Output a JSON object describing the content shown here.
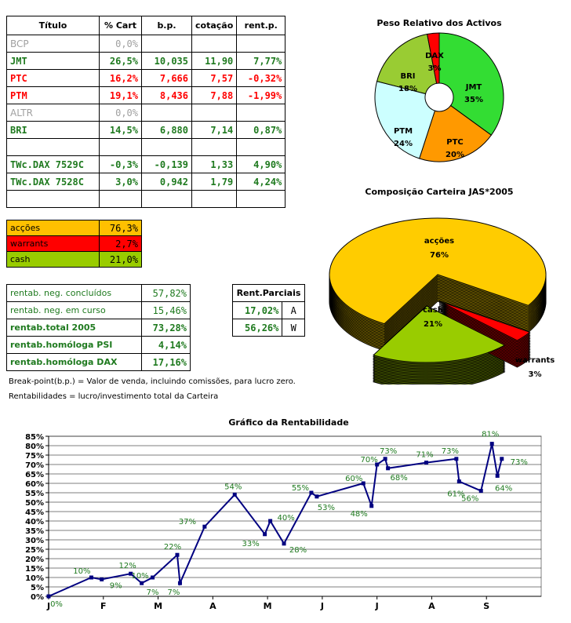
{
  "holdings_table": {
    "headers": [
      "Título",
      "% Cart",
      "b.p.",
      "cotação",
      "rent.p."
    ],
    "rows": [
      {
        "name": "BCP",
        "pct": "0,0%",
        "bp": "",
        "quote": "",
        "rent": "",
        "style": "gray"
      },
      {
        "name": "JMT",
        "pct": "26,5%",
        "bp": "10,035",
        "quote": "11,90",
        "rent": "7,77%",
        "style": "green"
      },
      {
        "name": "PTC",
        "pct": "16,2%",
        "bp": "7,666",
        "quote": "7,57",
        "rent": "-0,32%",
        "style": "red"
      },
      {
        "name": "PTM",
        "pct": "19,1%",
        "bp": "8,436",
        "quote": "7,88",
        "rent": "-1,99%",
        "style": "red"
      },
      {
        "name": "ALTR",
        "pct": "0,0%",
        "bp": "",
        "quote": "",
        "rent": "",
        "style": "gray"
      },
      {
        "name": "BRI",
        "pct": "14,5%",
        "bp": "6,880",
        "quote": "7,14",
        "rent": "0,87%",
        "style": "green"
      },
      {
        "name": "",
        "pct": "",
        "bp": "",
        "quote": "",
        "rent": "",
        "style": "blank"
      },
      {
        "name": "TWc.DAX 7529C",
        "pct": "-0,3%",
        "bp": "-0,139",
        "quote": "1,33",
        "rent": "4,90%",
        "style": "green"
      },
      {
        "name": "TWc.DAX 7528C",
        "pct": "3,0%",
        "bp": "0,942",
        "quote": "1,79",
        "rent": "4,24%",
        "style": "green"
      },
      {
        "name": "",
        "pct": "",
        "bp": "",
        "quote": "",
        "rent": "",
        "style": "blank"
      }
    ]
  },
  "allocation_table": [
    {
      "label": "acções",
      "value": "76,3%",
      "color": "#ffc000"
    },
    {
      "label": "warrants",
      "value": "2,7%",
      "color": "#ff0000"
    },
    {
      "label": "cash",
      "value": "21,0%",
      "color": "#99cc00"
    }
  ],
  "returns_table": [
    {
      "label": "rentab. neg. concluídos",
      "value": "57,82%",
      "bold": false
    },
    {
      "label": "rentab. neg. em curso",
      "value": "15,46%",
      "bold": false
    },
    {
      "label": "rentab.total 2005",
      "value": "73,28%",
      "bold": true
    },
    {
      "label": "rentab.homóloga PSI",
      "value": "4,14%",
      "bold": true
    },
    {
      "label": "rentab.homóloga DAX",
      "value": "17,16%",
      "bold": true
    }
  ],
  "partial_returns": {
    "title": "Rent.Parciais",
    "rows": [
      {
        "value": "17,02%",
        "tag": "A"
      },
      {
        "value": "56,26%",
        "tag": "W"
      }
    ]
  },
  "notes": [
    "Break-point(b.p.) = Valor de venda, incluindo comissões, para lucro zero.",
    "Rentabilidades = lucro/investimento total da Carteira"
  ],
  "chart_data": [
    {
      "type": "pie",
      "title": "Peso Relativo dos Activos",
      "labels": [
        "JMT",
        "PTC",
        "PTM",
        "BRI",
        "DAX"
      ],
      "values": [
        35,
        20,
        24,
        18,
        3
      ],
      "colors": [
        "#33dd33",
        "#ff9900",
        "#ccffff",
        "#99cc33",
        "#ff0000"
      ],
      "style": "doughnut"
    },
    {
      "type": "pie",
      "title": "Composição Carteira JAS*2005",
      "labels": [
        "acções",
        "cash",
        "warrants"
      ],
      "values": [
        76,
        21,
        3
      ],
      "colors": [
        "#ffcc00",
        "#99cc00",
        "#ff0000"
      ],
      "style": "3d-exploded"
    },
    {
      "type": "line",
      "title": "Gráfico da Rentabilidade",
      "x_labels": [
        "J",
        "F",
        "M",
        "A",
        "M",
        "J",
        "J",
        "A",
        "S"
      ],
      "x_range": [
        0,
        9
      ],
      "ylim": [
        0,
        85
      ],
      "y_ticks": [
        "0%",
        "5%",
        "10%",
        "15%",
        "20%",
        "25%",
        "30%",
        "35%",
        "40%",
        "45%",
        "50%",
        "55%",
        "60%",
        "65%",
        "70%",
        "75%",
        "80%",
        "85%"
      ],
      "grid": true,
      "line_color": "#000080",
      "label_color": "#1f7a1f",
      "points": [
        {
          "x": 0.0,
          "y": 0,
          "label": "0%"
        },
        {
          "x": 0.78,
          "y": 10,
          "label": "10%"
        },
        {
          "x": 0.97,
          "y": 9,
          "label": "9%"
        },
        {
          "x": 1.5,
          "y": 12,
          "label": "12%"
        },
        {
          "x": 1.7,
          "y": 7,
          "label": "7%"
        },
        {
          "x": 1.9,
          "y": 10,
          "label": "10%"
        },
        {
          "x": 2.35,
          "y": 22,
          "label": "22%"
        },
        {
          "x": 2.4,
          "y": 7,
          "label": "7%"
        },
        {
          "x": 2.85,
          "y": 37,
          "label": "37%"
        },
        {
          "x": 3.4,
          "y": 54,
          "label": "54%"
        },
        {
          "x": 3.95,
          "y": 33,
          "label": "33%"
        },
        {
          "x": 4.05,
          "y": 40,
          "label": "40%"
        },
        {
          "x": 4.3,
          "y": 28,
          "label": "28%"
        },
        {
          "x": 4.8,
          "y": 55,
          "label": "55%"
        },
        {
          "x": 4.9,
          "y": 53,
          "label": "53%"
        },
        {
          "x": 5.75,
          "y": 60,
          "label": "60%"
        },
        {
          "x": 5.9,
          "y": 48,
          "label": "48%"
        },
        {
          "x": 6.0,
          "y": 70,
          "label": "70%"
        },
        {
          "x": 6.15,
          "y": 73,
          "label": "73%"
        },
        {
          "x": 6.2,
          "y": 68,
          "label": "68%"
        },
        {
          "x": 6.9,
          "y": 71,
          "label": "71%"
        },
        {
          "x": 7.45,
          "y": 73,
          "label": "73%"
        },
        {
          "x": 7.5,
          "y": 61,
          "label": "61%"
        },
        {
          "x": 7.9,
          "y": 56,
          "label": "56%"
        },
        {
          "x": 8.1,
          "y": 81,
          "label": "81%"
        },
        {
          "x": 8.2,
          "y": 64,
          "label": "64%"
        },
        {
          "x": 8.28,
          "y": 73,
          "label": "73%"
        }
      ]
    }
  ]
}
